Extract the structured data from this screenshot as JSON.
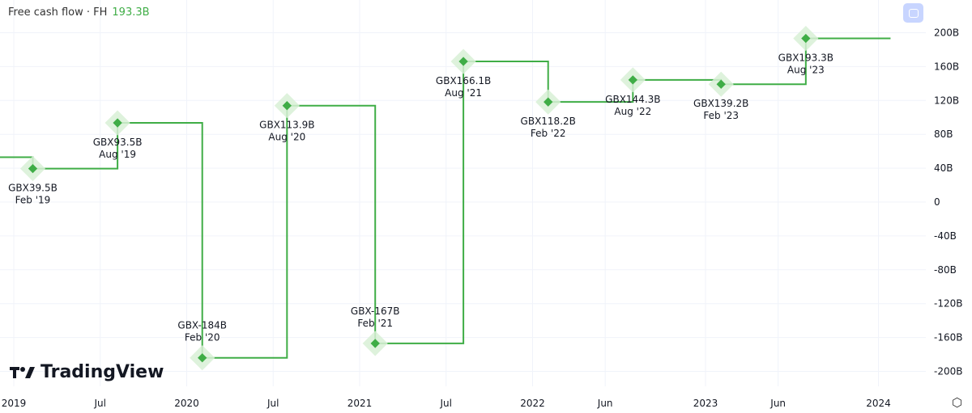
{
  "header": {
    "title": "Free cash flow · FH",
    "value": "193.3B"
  },
  "logo": {
    "text": "TradingView"
  },
  "colors": {
    "line": "#3fad46",
    "halo": "#d8f0d6"
  },
  "chart_data": {
    "type": "line",
    "step": true,
    "title": "Free cash flow · FH",
    "ylim": [
      -200,
      200
    ],
    "yticks": [
      {
        "v": 200,
        "label": "200B"
      },
      {
        "v": 160,
        "label": "160B"
      },
      {
        "v": 120,
        "label": "120B"
      },
      {
        "v": 80,
        "label": "80B"
      },
      {
        "v": 40,
        "label": "40B"
      },
      {
        "v": 0,
        "label": "0"
      },
      {
        "v": -40,
        "label": "-40B"
      },
      {
        "v": -80,
        "label": "-80B"
      },
      {
        "v": -120,
        "label": "-120B"
      },
      {
        "v": -160,
        "label": "-160B"
      },
      {
        "v": -200,
        "label": "-200B"
      }
    ],
    "xticks": [
      {
        "t": 2019.0,
        "label": "2019"
      },
      {
        "t": 2019.5,
        "label": "Jul"
      },
      {
        "t": 2020.0,
        "label": "2020"
      },
      {
        "t": 2020.5,
        "label": "Jul"
      },
      {
        "t": 2021.0,
        "label": "2021"
      },
      {
        "t": 2021.5,
        "label": "Jul"
      },
      {
        "t": 2022.0,
        "label": "2022"
      },
      {
        "t": 2022.42,
        "label": "Jun"
      },
      {
        "t": 2023.0,
        "label": "2023"
      },
      {
        "t": 2023.42,
        "label": "Jun"
      },
      {
        "t": 2024.0,
        "label": "2024"
      }
    ],
    "initial_value": 53,
    "points": [
      {
        "t": 2019.11,
        "v": 39.5,
        "label": "GBX39.5B",
        "date": "Feb '19",
        "pos": "below"
      },
      {
        "t": 2019.6,
        "v": 93.5,
        "label": "GBX93.5B",
        "date": "Aug '19",
        "pos": "below"
      },
      {
        "t": 2020.09,
        "v": -184,
        "label": "GBX-184B",
        "date": "Feb '20",
        "pos": "above"
      },
      {
        "t": 2020.58,
        "v": 113.9,
        "label": "GBX113.9B",
        "date": "Aug '20",
        "pos": "below"
      },
      {
        "t": 2021.09,
        "v": -167,
        "label": "GBX-167B",
        "date": "Feb '21",
        "pos": "above"
      },
      {
        "t": 2021.6,
        "v": 166.1,
        "label": "GBX166.1B",
        "date": "Aug '21",
        "pos": "below"
      },
      {
        "t": 2022.09,
        "v": 118.2,
        "label": "GBX118.2B",
        "date": "Feb '22",
        "pos": "below"
      },
      {
        "t": 2022.58,
        "v": 144.3,
        "label": "GBX144.3B",
        "date": "Aug '22",
        "pos": "below"
      },
      {
        "t": 2023.09,
        "v": 139.2,
        "label": "GBX139.2B",
        "date": "Feb '23",
        "pos": "below"
      },
      {
        "t": 2023.58,
        "v": 193.3,
        "label": "GBX193.3B",
        "date": "Aug '23",
        "pos": "below"
      }
    ],
    "end_t": 2024.07
  }
}
